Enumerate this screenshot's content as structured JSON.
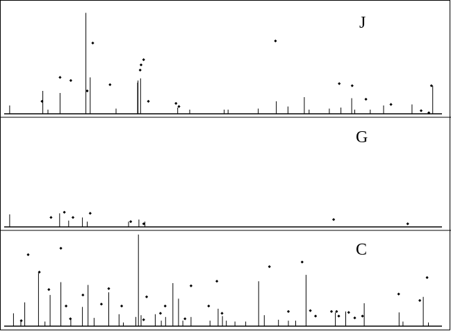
{
  "chart_data": [
    {
      "type": "line",
      "panel_label": "J",
      "x_range": [
        0,
        1000
      ],
      "ylim": [
        0,
        100
      ],
      "grid": false,
      "bars": [
        [
          3,
          8
        ],
        [
          80,
          22
        ],
        [
          92,
          4
        ],
        [
          120,
          20
        ],
        [
          180,
          97
        ],
        [
          190,
          35
        ],
        [
          250,
          5
        ],
        [
          300,
          30
        ],
        [
          301,
          32
        ],
        [
          307,
          34
        ],
        [
          393,
          6
        ],
        [
          421,
          4
        ],
        [
          501,
          4
        ],
        [
          510,
          4
        ],
        [
          580,
          5
        ],
        [
          622,
          12
        ],
        [
          649,
          7
        ],
        [
          687,
          16
        ],
        [
          698,
          4
        ],
        [
          745,
          5
        ],
        [
          772,
          6
        ],
        [
          797,
          15
        ],
        [
          804,
          4
        ],
        [
          840,
          4
        ],
        [
          871,
          8
        ],
        [
          937,
          9
        ],
        [
          985,
          27
        ]
      ],
      "dots": [
        [
          78,
          12
        ],
        [
          120,
          35
        ],
        [
          145,
          32
        ],
        [
          183,
          22
        ],
        [
          196,
          68
        ],
        [
          236,
          28
        ],
        [
          306,
          42
        ],
        [
          308,
          47
        ],
        [
          314,
          52
        ],
        [
          325,
          12
        ],
        [
          389,
          10
        ],
        [
          396,
          7
        ],
        [
          620,
          70
        ],
        [
          768,
          29
        ],
        [
          798,
          27
        ],
        [
          830,
          14
        ],
        [
          888,
          9
        ],
        [
          958,
          3
        ],
        [
          976,
          1
        ],
        [
          982,
          27
        ]
      ]
    },
    {
      "type": "line",
      "panel_label": "G",
      "x_range": [
        0,
        1000
      ],
      "ylim": [
        0,
        100
      ],
      "grid": false,
      "bars": [
        [
          3,
          12
        ],
        [
          119,
          13
        ],
        [
          140,
          6
        ],
        [
          172,
          9
        ],
        [
          183,
          5
        ],
        [
          279,
          5
        ],
        [
          303,
          7
        ],
        [
          317,
          5
        ]
      ],
      "dots": [
        [
          99,
          9
        ],
        [
          130,
          14
        ],
        [
          150,
          9
        ],
        [
          190,
          13
        ],
        [
          284,
          5
        ],
        [
          314,
          3
        ],
        [
          755,
          7
        ],
        [
          927,
          3
        ]
      ]
    },
    {
      "type": "line",
      "panel_label": "C",
      "x_range": [
        0,
        1000
      ],
      "ylim": [
        0,
        100
      ],
      "grid": false,
      "bars": [
        [
          12,
          14
        ],
        [
          29,
          6
        ],
        [
          38,
          26
        ],
        [
          70,
          58
        ],
        [
          85,
          5
        ],
        [
          97,
          34
        ],
        [
          122,
          48
        ],
        [
          145,
          9
        ],
        [
          172,
          21
        ],
        [
          185,
          45
        ],
        [
          199,
          9
        ],
        [
          233,
          37
        ],
        [
          257,
          13
        ],
        [
          267,
          4
        ],
        [
          296,
          10
        ],
        [
          302,
          100
        ],
        [
          308,
          12
        ],
        [
          341,
          13
        ],
        [
          355,
          6
        ],
        [
          365,
          10
        ],
        [
          382,
          47
        ],
        [
          395,
          30
        ],
        [
          405,
          6
        ],
        [
          424,
          10
        ],
        [
          468,
          6
        ],
        [
          487,
          19
        ],
        [
          497,
          11
        ],
        [
          506,
          6
        ],
        [
          526,
          5
        ],
        [
          551,
          5
        ],
        [
          581,
          49
        ],
        [
          594,
          12
        ],
        [
          627,
          7
        ],
        [
          650,
          6
        ],
        [
          667,
          6
        ],
        [
          691,
          56
        ],
        [
          759,
          15
        ],
        [
          783,
          16
        ],
        [
          826,
          25
        ],
        [
          907,
          15
        ],
        [
          916,
          5
        ],
        [
          963,
          32
        ],
        [
          975,
          4
        ]
      ],
      "dots": [
        [
          30,
          6
        ],
        [
          46,
          78
        ],
        [
          72,
          59
        ],
        [
          94,
          40
        ],
        [
          122,
          85
        ],
        [
          134,
          22
        ],
        [
          144,
          8
        ],
        [
          173,
          34
        ],
        [
          216,
          24
        ],
        [
          233,
          41
        ],
        [
          263,
          22
        ],
        [
          314,
          7
        ],
        [
          321,
          32
        ],
        [
          353,
          14
        ],
        [
          364,
          22
        ],
        [
          410,
          8
        ],
        [
          424,
          44
        ],
        [
          465,
          22
        ],
        [
          484,
          49
        ],
        [
          496,
          14
        ],
        [
          606,
          65
        ],
        [
          650,
          16
        ],
        [
          682,
          70
        ],
        [
          701,
          17
        ],
        [
          713,
          11
        ],
        [
          750,
          16
        ],
        [
          762,
          16
        ],
        [
          767,
          11
        ],
        [
          790,
          15
        ],
        [
          804,
          9
        ],
        [
          822,
          11
        ],
        [
          906,
          35
        ],
        [
          955,
          28
        ],
        [
          972,
          53
        ]
      ]
    }
  ]
}
